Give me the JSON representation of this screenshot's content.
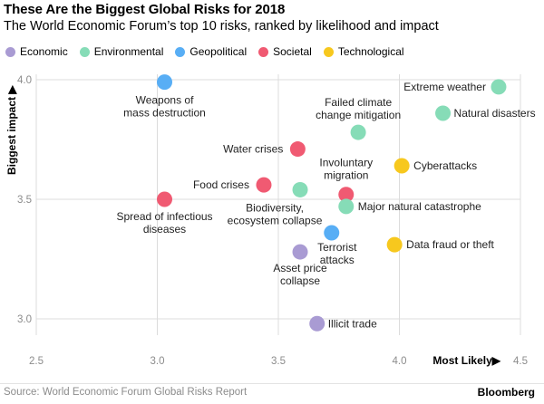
{
  "title": "These Are the Biggest Global Risks for 2018",
  "subtitle": "The World Economic Forum’s top 10 risks, ranked by likelihood and impact",
  "legend": [
    {
      "label": "Economic",
      "color": "#a99bd3"
    },
    {
      "label": "Environmental",
      "color": "#86dcb7"
    },
    {
      "label": "Geopolitical",
      "color": "#58aef5"
    },
    {
      "label": "Societal",
      "color": "#f05a72"
    },
    {
      "label": "Technological",
      "color": "#f7c81e"
    }
  ],
  "source": "Source: World Economic Forum Global Risks Report",
  "brand": "Bloomberg",
  "chart_data": {
    "type": "scatter",
    "xlabel": "Most Likely▶",
    "ylabel": "Biggest impact ▶",
    "xlim": [
      2.5,
      4.5
    ],
    "ylim": [
      3.0,
      4.0
    ],
    "xticks": [
      "2.5",
      "3.0",
      "3.5",
      "4.0",
      "4.5"
    ],
    "yticks": [
      "3.0",
      "3.5",
      "4.0"
    ],
    "grid": true,
    "points": [
      {
        "label": "Weapons of\nmass destruction",
        "category": "Geopolitical",
        "x": 3.03,
        "y": 3.99
      },
      {
        "label": "Extreme weather",
        "category": "Environmental",
        "x": 4.41,
        "y": 3.97
      },
      {
        "label": "Natural disasters",
        "category": "Environmental",
        "x": 4.18,
        "y": 3.86
      },
      {
        "label": "Failed climate\nchange mitigation",
        "category": "Environmental",
        "x": 3.83,
        "y": 3.78
      },
      {
        "label": "Water crises",
        "category": "Societal",
        "x": 3.58,
        "y": 3.71
      },
      {
        "label": "Cyberattacks",
        "category": "Technological",
        "x": 4.01,
        "y": 3.64
      },
      {
        "label": "Food crises",
        "category": "Societal",
        "x": 3.44,
        "y": 3.56
      },
      {
        "label": "Biodiversity,\necosystem collapse",
        "category": "Environmental",
        "x": 3.59,
        "y": 3.54
      },
      {
        "label": "Involuntary\nmigration",
        "category": "Societal",
        "x": 3.78,
        "y": 3.52
      },
      {
        "label": "Major natural catastrophe",
        "category": "Environmental",
        "x": 3.78,
        "y": 3.47
      },
      {
        "label": "Spread of infectious\ndiseases",
        "category": "Societal",
        "x": 3.03,
        "y": 3.5
      },
      {
        "label": "Terrorist\nattacks",
        "category": "Geopolitical",
        "x": 3.72,
        "y": 3.36
      },
      {
        "label": "Data fraud or theft",
        "category": "Technological",
        "x": 3.98,
        "y": 3.31
      },
      {
        "label": "Asset price\ncollapse",
        "category": "Economic",
        "x": 3.59,
        "y": 3.28
      },
      {
        "label": "Illicit trade",
        "category": "Economic",
        "x": 3.66,
        "y": 2.98
      }
    ]
  }
}
